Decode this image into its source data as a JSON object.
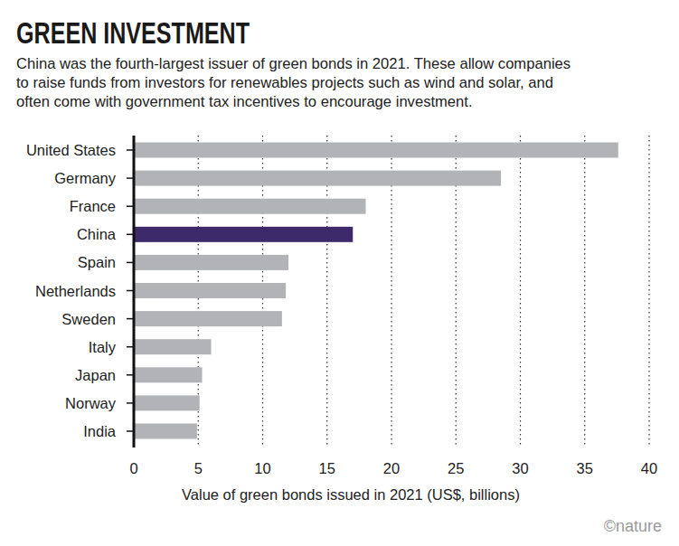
{
  "chart_data": {
    "type": "bar",
    "orientation": "horizontal",
    "title": "GREEN INVESTMENT",
    "subtitle": [
      "China was the fourth-largest issuer of green bonds in 2021. These allow companies",
      "to raise funds from investors for renewables projects such as wind and solar, and",
      "often come with government tax incentives to encourage investment."
    ],
    "categories": [
      "United States",
      "Germany",
      "France",
      "China",
      "Spain",
      "Netherlands",
      "Sweden",
      "Italy",
      "Japan",
      "Norway",
      "India"
    ],
    "values": [
      37.6,
      28.5,
      18.0,
      17.0,
      12.0,
      11.8,
      11.5,
      6.0,
      5.3,
      5.1,
      4.9
    ],
    "colors": [
      "#b1b3b6",
      "#b1b3b6",
      "#b1b3b6",
      "#3d2a6b",
      "#b1b3b6",
      "#b1b3b6",
      "#b1b3b6",
      "#b1b3b6",
      "#b1b3b6",
      "#b1b3b6",
      "#b1b3b6"
    ],
    "x_label": "Value of green bonds issued in 2021 (US$, billions)",
    "xlim": [
      0,
      40
    ],
    "xticks": [
      0,
      5,
      10,
      15,
      20,
      25,
      30,
      35,
      40
    ],
    "grid": true,
    "credit": "©nature"
  }
}
